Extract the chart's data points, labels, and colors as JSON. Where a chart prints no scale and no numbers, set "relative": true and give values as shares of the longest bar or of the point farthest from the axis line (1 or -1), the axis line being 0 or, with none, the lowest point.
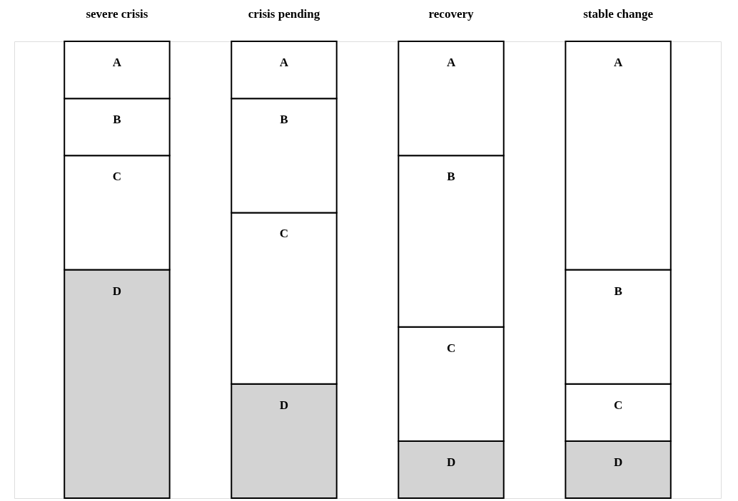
{
  "chart_data": {
    "type": "bar",
    "relative": true,
    "stacked": true,
    "categories": [
      "severe crisis",
      "crisis pending",
      "recovery",
      "stable change"
    ],
    "series": [
      {
        "name": "D",
        "color": "#d3d3d3",
        "values": [
          0.5,
          0.25,
          0.125,
          0.125
        ]
      },
      {
        "name": "C",
        "color": "#ffffff",
        "values": [
          0.25,
          0.375,
          0.25,
          0.125
        ]
      },
      {
        "name": "B",
        "color": "#ffffff",
        "values": [
          0.125,
          0.25,
          0.375,
          0.25
        ]
      },
      {
        "name": "A",
        "color": "#ffffff",
        "values": [
          0.125,
          0.125,
          0.25,
          0.5
        ]
      }
    ]
  }
}
